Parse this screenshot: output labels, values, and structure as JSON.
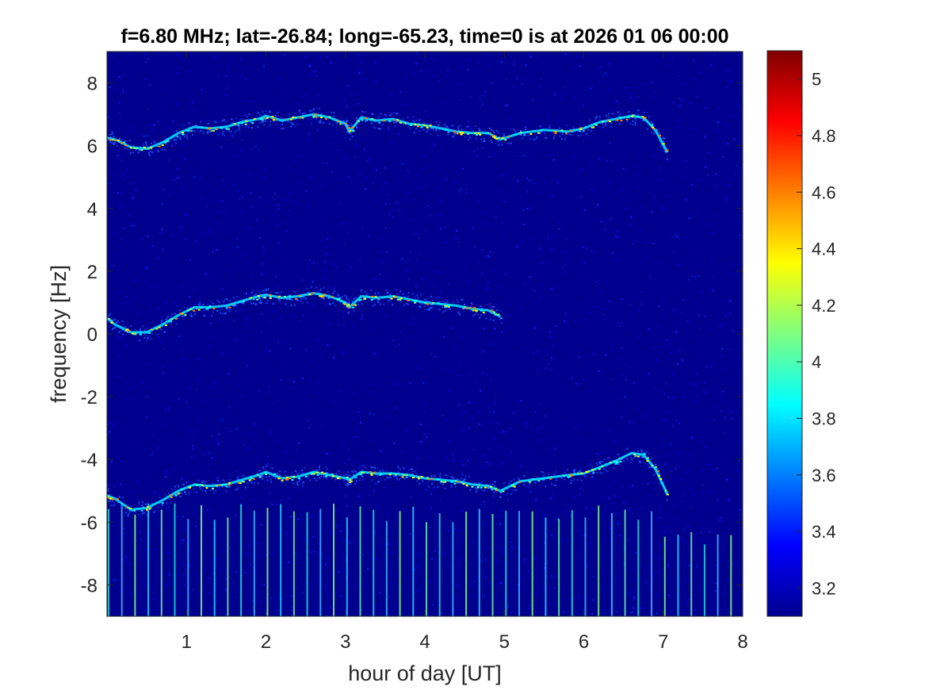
{
  "chart_data": {
    "type": "heatmap",
    "title": "f=6.80 MHz;  lat=-26.84; long=-65.23, time=0 is at 2026 01 06 00:00",
    "xlabel": "hour of day [UT]",
    "ylabel": "frequency [Hz]",
    "xlim": [
      0,
      8
    ],
    "ylim": [
      -9,
      9
    ],
    "x_ticks": [
      1,
      2,
      3,
      4,
      5,
      6,
      7,
      8
    ],
    "x_tick_labels": [
      "1",
      "2",
      "3",
      "4",
      "5",
      "6",
      "7",
      "8"
    ],
    "y_ticks": [
      -8,
      -6,
      -4,
      -2,
      0,
      2,
      4,
      6,
      8
    ],
    "y_tick_labels": [
      "-8",
      "-6",
      "-4",
      "-2",
      "0",
      "2",
      "4",
      "6",
      "8"
    ],
    "colormap": "jet",
    "colorbar": {
      "range": [
        3.1,
        5.1
      ],
      "ticks": [
        3.2,
        3.4,
        3.6,
        3.8,
        4.0,
        4.2,
        4.4,
        4.6,
        4.8,
        5.0
      ],
      "tick_labels": [
        "3.2",
        "3.4",
        "3.6",
        "3.8",
        "4",
        "4.2",
        "4.4",
        "4.6",
        "4.8",
        "5"
      ]
    },
    "background_color": "#00008f",
    "series": [
      {
        "offset_hz": 6.0,
        "x": [
          0.0,
          0.1,
          0.3,
          0.5,
          0.7,
          0.9,
          1.1,
          1.3,
          1.5,
          1.7,
          1.9,
          2.0,
          2.2,
          2.4,
          2.6,
          2.8,
          3.0,
          3.05,
          3.2,
          3.4,
          3.6,
          3.8,
          4.0,
          4.2,
          4.4,
          4.6,
          4.8,
          4.95,
          5.2,
          5.5,
          5.8,
          6.0,
          6.2,
          6.4,
          6.6,
          6.75,
          6.9,
          7.05
        ],
        "y": [
          6.25,
          6.2,
          5.95,
          5.9,
          6.1,
          6.4,
          6.6,
          6.55,
          6.6,
          6.75,
          6.85,
          6.95,
          6.8,
          6.9,
          7.0,
          6.9,
          6.7,
          6.45,
          6.9,
          6.8,
          6.85,
          6.7,
          6.65,
          6.55,
          6.45,
          6.4,
          6.4,
          6.2,
          6.4,
          6.5,
          6.45,
          6.55,
          6.75,
          6.85,
          6.95,
          6.9,
          6.5,
          5.8
        ]
      },
      {
        "offset_hz": 0.0,
        "x": [
          0.0,
          0.1,
          0.3,
          0.5,
          0.7,
          0.9,
          1.1,
          1.3,
          1.5,
          1.7,
          1.9,
          2.0,
          2.2,
          2.4,
          2.6,
          2.8,
          3.0,
          3.05,
          3.2,
          3.4,
          3.6,
          3.8,
          4.0,
          4.2,
          4.4,
          4.6,
          4.8,
          4.95
        ],
        "y": [
          0.5,
          0.3,
          0.05,
          0.05,
          0.3,
          0.6,
          0.85,
          0.85,
          0.9,
          1.05,
          1.2,
          1.25,
          1.15,
          1.2,
          1.3,
          1.2,
          1.0,
          0.85,
          1.2,
          1.15,
          1.2,
          1.1,
          1.0,
          0.95,
          0.9,
          0.8,
          0.75,
          0.55
        ]
      },
      {
        "offset_hz": -5.0,
        "x": [
          0.0,
          0.1,
          0.3,
          0.5,
          0.7,
          0.9,
          1.1,
          1.3,
          1.5,
          1.7,
          1.9,
          2.0,
          2.2,
          2.4,
          2.6,
          2.8,
          3.0,
          3.05,
          3.2,
          3.4,
          3.6,
          3.8,
          4.0,
          4.2,
          4.4,
          4.6,
          4.8,
          4.95,
          5.2,
          5.5,
          5.8,
          6.0,
          6.2,
          6.4,
          6.6,
          6.75,
          6.9,
          7.05
        ],
        "y": [
          -5.15,
          -5.25,
          -5.6,
          -5.55,
          -5.3,
          -5.0,
          -4.8,
          -4.85,
          -4.8,
          -4.65,
          -4.5,
          -4.4,
          -4.6,
          -4.55,
          -4.4,
          -4.5,
          -4.6,
          -4.65,
          -4.4,
          -4.45,
          -4.45,
          -4.5,
          -4.6,
          -4.65,
          -4.7,
          -4.8,
          -4.85,
          -5.0,
          -4.7,
          -4.6,
          -4.5,
          -4.45,
          -4.25,
          -4.05,
          -3.8,
          -3.85,
          -4.3,
          -5.1
        ]
      }
    ]
  }
}
